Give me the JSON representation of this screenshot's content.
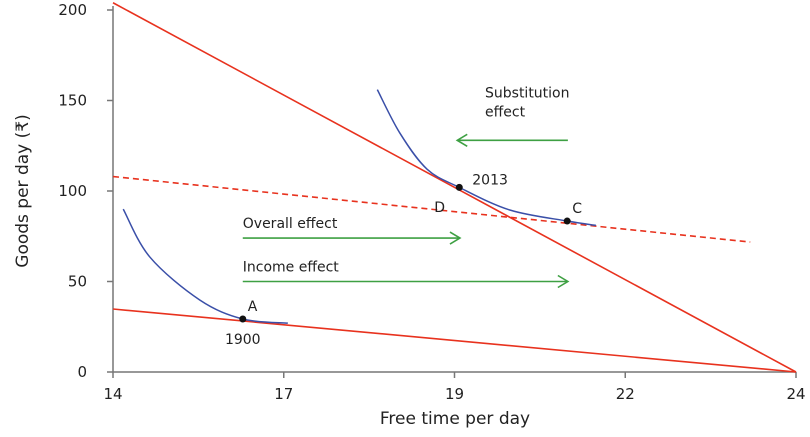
{
  "chart_data": {
    "type": "line",
    "title": "",
    "xlabel": "Free time per day",
    "ylabel": "Goods per day (₹)",
    "xlim": [
      14,
      24
    ],
    "ylim": [
      0,
      200
    ],
    "grid": false,
    "x_ticks": [
      {
        "value": 14,
        "label": "14"
      },
      {
        "value": 16.5,
        "label": "17"
      },
      {
        "value": 19,
        "label": "19"
      },
      {
        "value": 21.5,
        "label": "22"
      },
      {
        "value": 24,
        "label": "24"
      }
    ],
    "y_ticks": [
      {
        "value": 0,
        "label": "0"
      },
      {
        "value": 50,
        "label": "50"
      },
      {
        "value": 100,
        "label": "100"
      },
      {
        "value": 150,
        "label": "150"
      },
      {
        "value": 200,
        "label": "200"
      }
    ],
    "colors": {
      "budget": "#e8321e",
      "indifference": "#3a4fa8",
      "arrow": "#3ea043",
      "point": "#111111",
      "axis": "#777777"
    },
    "budget_lines": [
      {
        "style": "solid",
        "points": [
          [
            14,
            204
          ],
          [
            24,
            0
          ]
        ]
      },
      {
        "style": "solid",
        "points": [
          [
            14,
            34.8
          ],
          [
            24,
            0
          ]
        ]
      },
      {
        "style": "dashed",
        "points": [
          [
            14,
            108
          ],
          [
            23.33,
            71.8
          ]
        ]
      }
    ],
    "indifference_curves": [
      {
        "points": [
          [
            14.15,
            90
          ],
          [
            14.54,
            63.5
          ],
          [
            15.27,
            39.8
          ],
          [
            15.9,
            29.3
          ],
          [
            16.56,
            27
          ]
        ]
      },
      {
        "points": [
          [
            17.87,
            156
          ],
          [
            18.2,
            132
          ],
          [
            18.6,
            112
          ],
          [
            19.07,
            102
          ],
          [
            19.81,
            89.5
          ],
          [
            20.65,
            83.4
          ],
          [
            21.07,
            81
          ]
        ]
      }
    ],
    "points": [
      {
        "label": "A",
        "sublabel": "1900",
        "x": 15.9,
        "y": 29.3
      },
      {
        "label": "",
        "sublabel": "2013",
        "x": 19.07,
        "y": 102
      },
      {
        "label": "C",
        "sublabel": "",
        "x": 20.65,
        "y": 83.4
      }
    ],
    "labels": [
      {
        "text": "D",
        "x": 18.85,
        "y": 94
      }
    ],
    "arrows": [
      {
        "label_lines": [
          "Substitution",
          "effect"
        ],
        "from": [
          20.66,
          128
        ],
        "to": [
          19.04,
          128
        ]
      },
      {
        "label_lines": [
          "Overall effect"
        ],
        "from": [
          15.9,
          74
        ],
        "to": [
          19.08,
          74
        ]
      },
      {
        "label_lines": [
          "Income effect"
        ],
        "from": [
          15.9,
          50
        ],
        "to": [
          20.66,
          50
        ]
      }
    ]
  }
}
